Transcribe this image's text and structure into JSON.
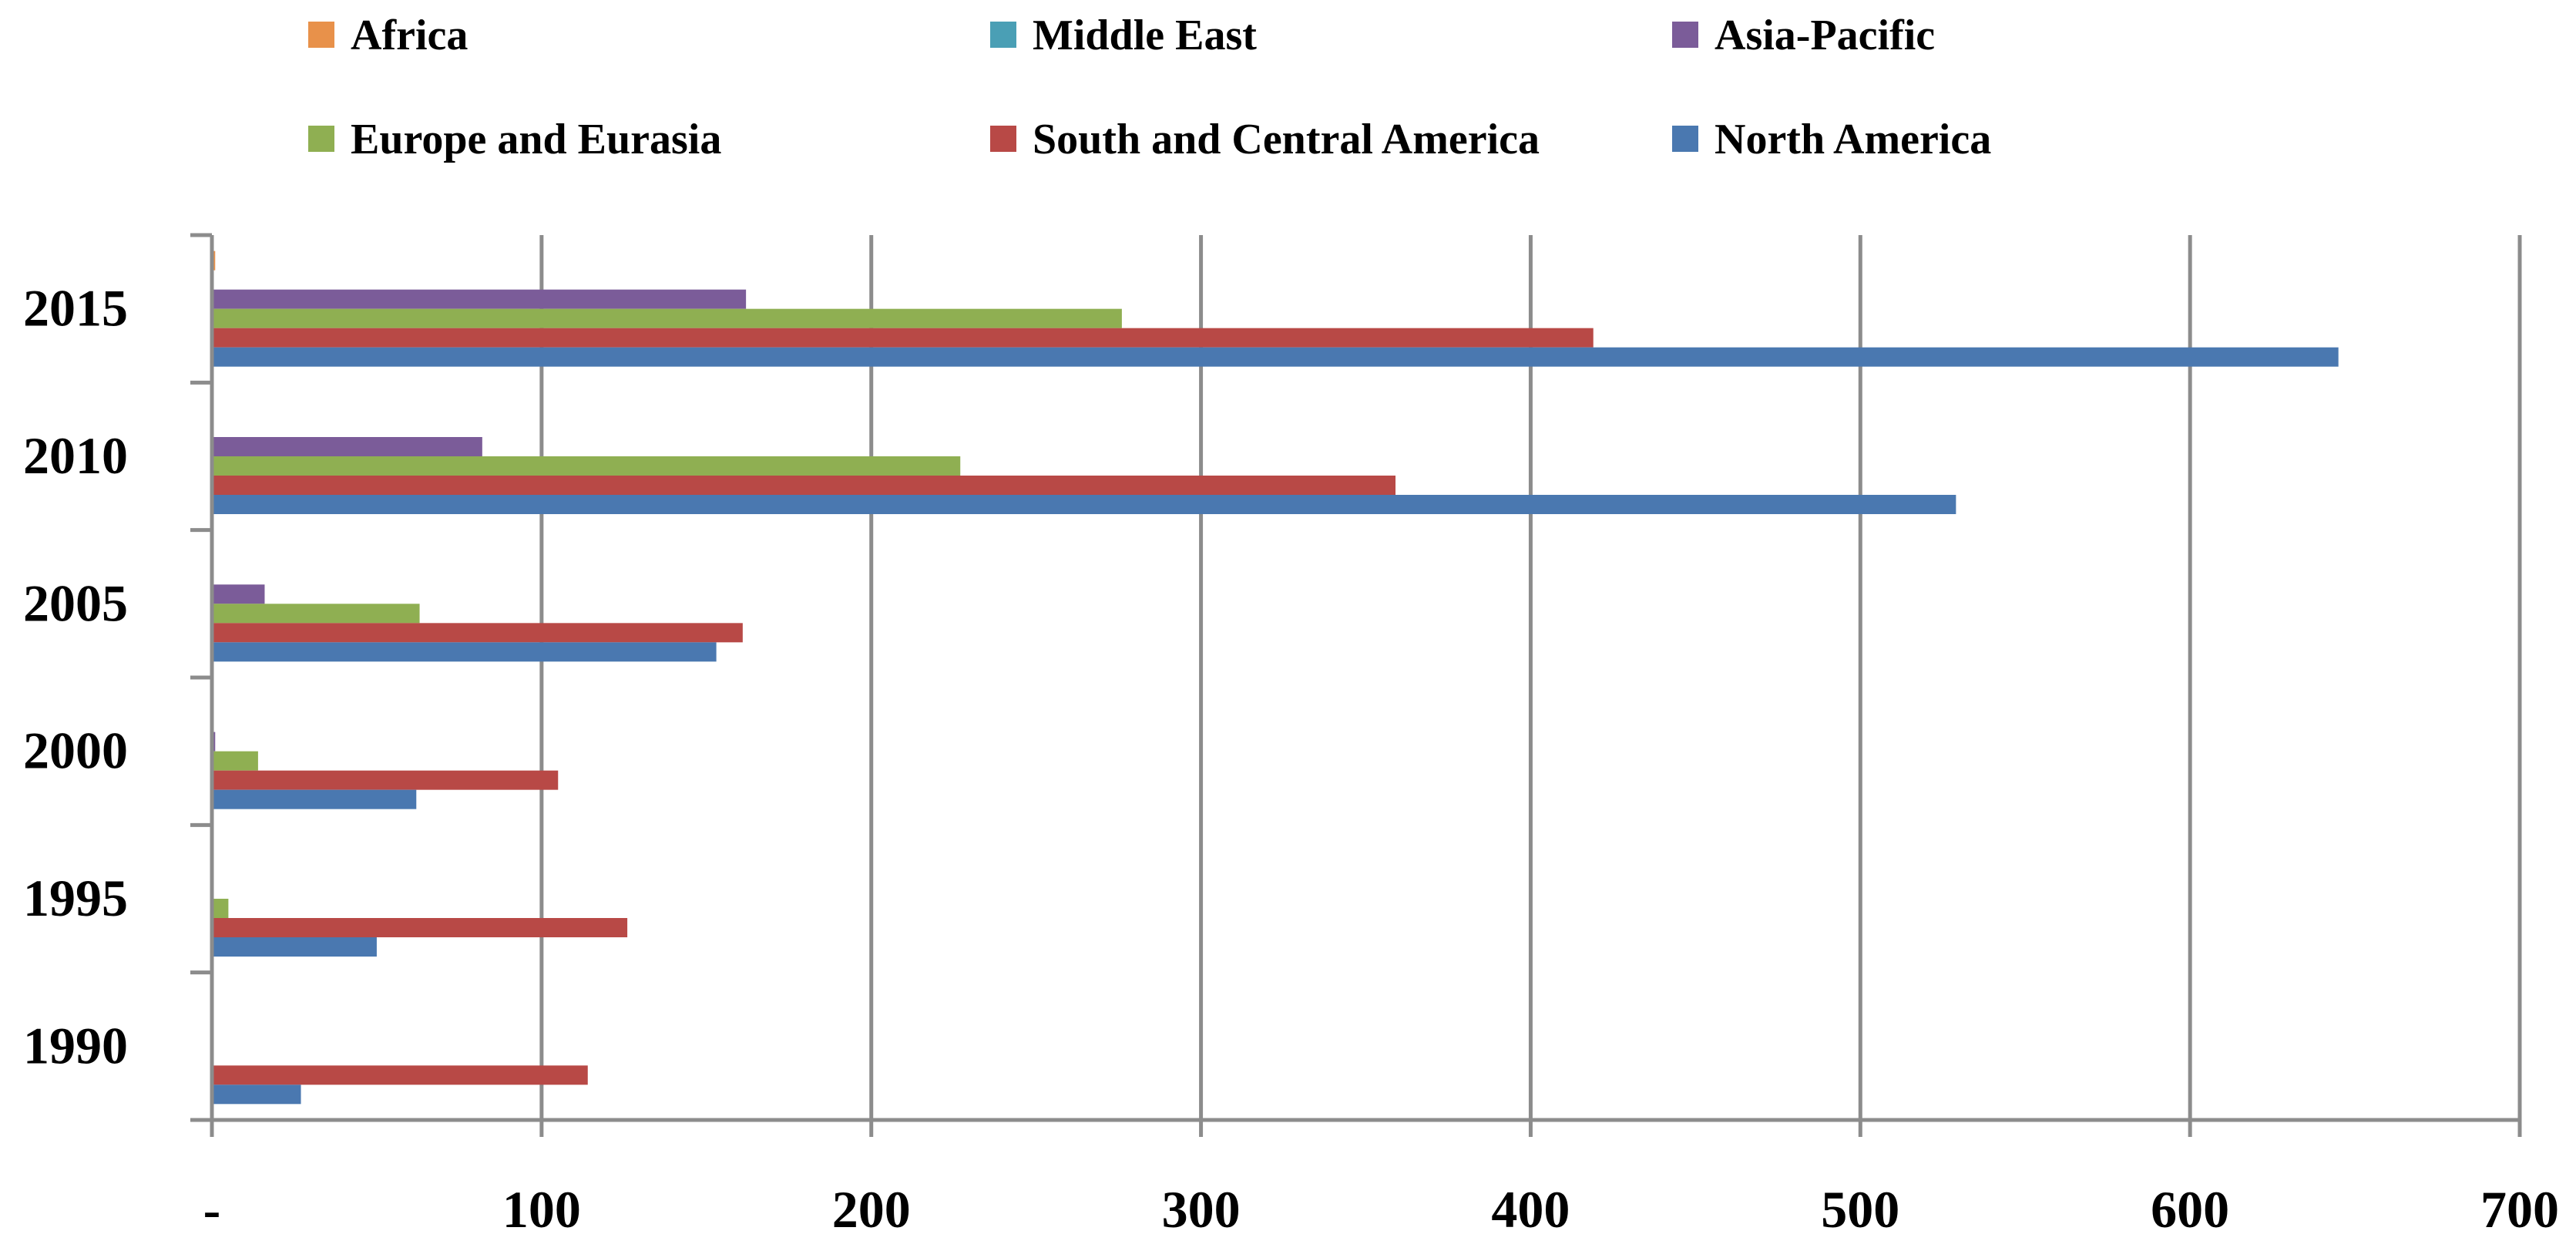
{
  "chart_data": {
    "type": "bar",
    "orientation": "horizontal",
    "categories": [
      "1990",
      "1995",
      "2000",
      "2005",
      "2010",
      "2015"
    ],
    "series": [
      {
        "name": "Africa",
        "color": "#E8914A",
        "values": [
          0,
          0,
          0,
          0,
          0,
          1
        ]
      },
      {
        "name": "Middle East",
        "color": "#4A9FB5",
        "values": [
          0,
          0,
          0,
          0,
          0,
          0
        ]
      },
      {
        "name": "Asia-Pacific",
        "color": "#7B5C99",
        "values": [
          0,
          0,
          1,
          16,
          82,
          162
        ]
      },
      {
        "name": "Europe and Eurasia",
        "color": "#8FAF52",
        "values": [
          0,
          5,
          14,
          63,
          227,
          276
        ]
      },
      {
        "name": "South and Central America",
        "color": "#B84946",
        "values": [
          114,
          126,
          105,
          161,
          359,
          419
        ]
      },
      {
        "name": "North America",
        "color": "#4A78B0",
        "values": [
          27,
          50,
          62,
          153,
          529,
          645
        ]
      }
    ],
    "xticks": [
      "-",
      "100",
      "200",
      "300",
      "400",
      "500",
      "600",
      "700"
    ],
    "xlim": [
      0,
      700
    ],
    "grid": true,
    "legend": "top"
  }
}
